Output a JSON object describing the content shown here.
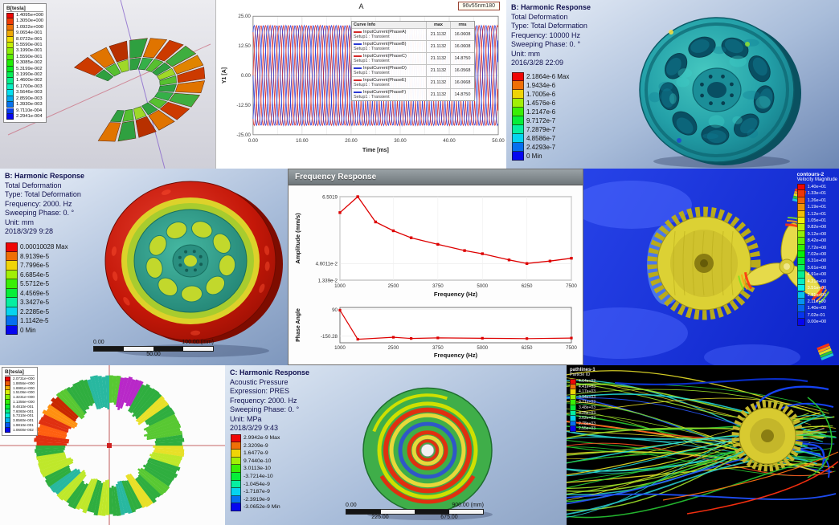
{
  "colors": {
    "ansys_text": "#10104f",
    "cfd_background_blue": "#1c35e8",
    "waveform_red": "#d42a2a",
    "waveform_blue": "#2a3ad4",
    "response_curve_red": "#dd0000"
  },
  "panels": {
    "maxwell_torus": {
      "legend_title": "B[tesla]",
      "legend_values": [
        "1.4095e+000",
        "1.3050e+000",
        "1.0922e+000",
        "9.0654e-001",
        "8.0722e-001",
        "5.5590e-001",
        "3.1990e-001",
        "1.5590e-001",
        "9.3085e-002",
        "5.3199e-002",
        "3.1990e-002",
        "1.4600e-002",
        "6.1700e-003",
        "3.5646e-003",
        "2.8590e-003",
        "1.3930e-003",
        "9.7110e-004",
        "2.2941e-004"
      ]
    },
    "harmonic_flywheel_top": {
      "title_lines": [
        "B: Harmonic Response",
        "Total Deformation",
        "Type: Total Deformation",
        "Frequency: 10000 Hz",
        "Sweeping Phase: 0. °",
        "Unit: mm",
        "2016/3/28 22:09"
      ],
      "legend": [
        "2.1864e-6 Max",
        "1.9434e-6",
        "1.7005e-6",
        "1.4576e-6",
        "1.2147e-6",
        "9.7172e-7",
        "7.2879e-7",
        "4.8586e-7",
        "2.4293e-7",
        "0 Min"
      ]
    },
    "harmonic_flywheel_mid": {
      "title_lines": [
        "B: Harmonic Response",
        "Total Deformation",
        "Type: Total Deformation",
        "Frequency: 2000. Hz",
        "Sweeping Phase: 0. °",
        "Unit: mm",
        "2018/3/29 9:28"
      ],
      "legend": [
        "0.00010028 Max",
        "8.9139e-5",
        "7.7996e-5",
        "6.6854e-5",
        "5.5712e-5",
        "4.4569e-5",
        "3.3427e-5",
        "2.2285e-5",
        "1.1142e-5",
        "0 Min"
      ],
      "scale": {
        "left": "0.00",
        "mid": "50.00",
        "right": "100.00 (mm)"
      }
    },
    "frequency_response": {
      "window_title": "Frequency Response"
    },
    "velocity_contour": {
      "legend_title": "contours-2",
      "legend_subtitle": "Velocity Magnitude",
      "legend_values": [
        "1.40e+01",
        "1.33e+01",
        "1.26e+01",
        "1.19e+01",
        "1.12e+01",
        "1.05e+01",
        "9.82e+00",
        "9.12e+00",
        "8.42e+00",
        "7.72e+00",
        "7.02e+00",
        "6.31e+00",
        "5.61e+00",
        "4.91e+00",
        "4.21e+00",
        "3.51e+00",
        "2.81e+00",
        "2.11e+00",
        "1.40e+00",
        "7.02e-01",
        "0.00e+00"
      ]
    },
    "maxwell_ring": {
      "legend_title": "B[tesla]",
      "legend_values": [
        "2.0731e+000",
        "1.8856e+000",
        "1.6981e+000",
        "1.5106e+000",
        "1.3231e+000",
        "1.1356e+000",
        "9.4810e-001",
        "7.6060e-001",
        "5.7310e-001",
        "3.8560e-001",
        "1.9810e-001",
        "1.0600e-002"
      ]
    },
    "acoustic_disk": {
      "title_lines": [
        "C: Harmonic Response",
        "Acoustic Pressure",
        "Expression: PRES",
        "Frequency: 2000. Hz",
        "Sweeping Phase: 0. °",
        "Unit: MPa",
        "2018/3/29 9:43"
      ],
      "legend": [
        "2.9942e-9 Max",
        "2.3209e-9",
        "1.6477e-9",
        "9.7440e-10",
        "3.0113e-10",
        "-3.7214e-10",
        "-1.0454e-9",
        "-1.7187e-9",
        "-2.3919e-9",
        "-3.0652e-9 Min"
      ],
      "scale": {
        "left": "0.00",
        "right": "900.00 (mm)",
        "q1": "225.00",
        "q3": "675.00"
      }
    },
    "pathlines": {
      "legend_title": "pathlines-1",
      "legend_subtitle": "Particle ID",
      "legend_values": [
        "4.64e+03",
        "4.41e+03",
        "4.17e+03",
        "3.94e+03",
        "3.71e+03",
        "3.48e+03",
        "3.25e+03",
        "3.02e+03",
        "2.78e+03",
        "2.55e+03"
      ]
    }
  },
  "chart_data": [
    {
      "type": "line",
      "title": "A",
      "annotation_box": "96v55nm180",
      "xlabel": "Time [ms]",
      "ylabel": "Y1 [A]",
      "xlim": [
        0,
        50
      ],
      "ylim": [
        -25,
        25
      ],
      "xticks": [
        "0.00",
        "10.00",
        "20.00",
        "30.00",
        "40.00",
        "50.00"
      ],
      "xtick_vals": [
        0,
        10,
        20,
        30,
        40,
        50
      ],
      "yticks": [
        "25.00",
        "12.50",
        "0.00",
        "-12.50",
        "-25.00"
      ],
      "ytick_vals": [
        25,
        12.5,
        0,
        -12.5,
        -25
      ],
      "amplitude": 21.1132,
      "period_ms": 2.78,
      "legend_header": {
        "curve": "Curve Info",
        "max": "max",
        "rms": "rms"
      },
      "series": [
        {
          "name": "InputCurrent(PhaseA)",
          "setup": "Setup1 : Transient",
          "color": "#d42a2a",
          "phase_deg": 0,
          "max": "21.1132",
          "rms": "16.0608"
        },
        {
          "name": "InputCurrent(PhaseB)",
          "setup": "Setup1 : Transient",
          "color": "#2a3ad4",
          "phase_deg": -60,
          "max": "21.1132",
          "rms": "16.0608"
        },
        {
          "name": "InputCurrent(PhaseC)",
          "setup": "Setup1 : Transient",
          "color": "#d42a2a",
          "phase_deg": -120,
          "max": "21.1132",
          "rms": "14.8750"
        },
        {
          "name": "InputCurrent(PhaseD)",
          "setup": "Setup1 : Transient",
          "color": "#2a3ad4",
          "phase_deg": -180,
          "max": "21.1132",
          "rms": "16.0568"
        },
        {
          "name": "InputCurrent(PhaseE)",
          "setup": "Setup1 : Transient",
          "color": "#d42a2a",
          "phase_deg": -240,
          "max": "21.1132",
          "rms": "16.0668"
        },
        {
          "name": "InputCurrent(PhaseF)",
          "setup": "Setup1 : Transient",
          "color": "#2a3ad4",
          "phase_deg": -300,
          "max": "21.1132",
          "rms": "14.8750"
        }
      ]
    },
    {
      "type": "line",
      "yscale": "log",
      "ylabel": "Amplitude (mm/s)",
      "xlabel": "Frequency (Hz)",
      "xlim": [
        1000,
        7500
      ],
      "ylim": [
        0.01339,
        6.50198
      ],
      "xticks": [
        "1000",
        "2500",
        "3750",
        "5000",
        "6250",
        "7500"
      ],
      "xtick_vals": [
        1000,
        2500,
        3750,
        5000,
        6250,
        7500
      ],
      "yticks": [
        {
          "v": 6.50198,
          "label": "6.5019"
        },
        {
          "v": 0.046011,
          "label": "4.6011e-2"
        },
        {
          "v": 0.01339,
          "label": "1.339e-2"
        }
      ],
      "x": [
        1000,
        1500,
        2000,
        2500,
        3000,
        3750,
        4500,
        5000,
        5750,
        6250,
        6900,
        7500
      ],
      "y": [
        2.0,
        6.5,
        1.0,
        0.52,
        0.31,
        0.19,
        0.12,
        0.095,
        0.06,
        0.046,
        0.055,
        0.068
      ],
      "line_color": "#dd0000"
    },
    {
      "type": "line",
      "ylabel": "Phase Angle",
      "xlabel": "Frequency (Hz)",
      "xlim": [
        1000,
        7500
      ],
      "ylim": [
        -210,
        110
      ],
      "xticks": [
        "1000",
        "2500",
        "3750",
        "5000",
        "6250",
        "7500"
      ],
      "xtick_vals": [
        1000,
        2500,
        3750,
        5000,
        6250,
        7500
      ],
      "yticks": [
        {
          "v": 90,
          "label": "90"
        },
        {
          "v": -150.28,
          "label": "-150.28"
        }
      ],
      "x": [
        1000,
        1500,
        2500,
        3000,
        3750,
        5000,
        6250,
        7500
      ],
      "y": [
        85,
        -178,
        -160,
        -171,
        -166,
        -169,
        -172,
        -167
      ],
      "line_color": "#dd0000"
    }
  ]
}
